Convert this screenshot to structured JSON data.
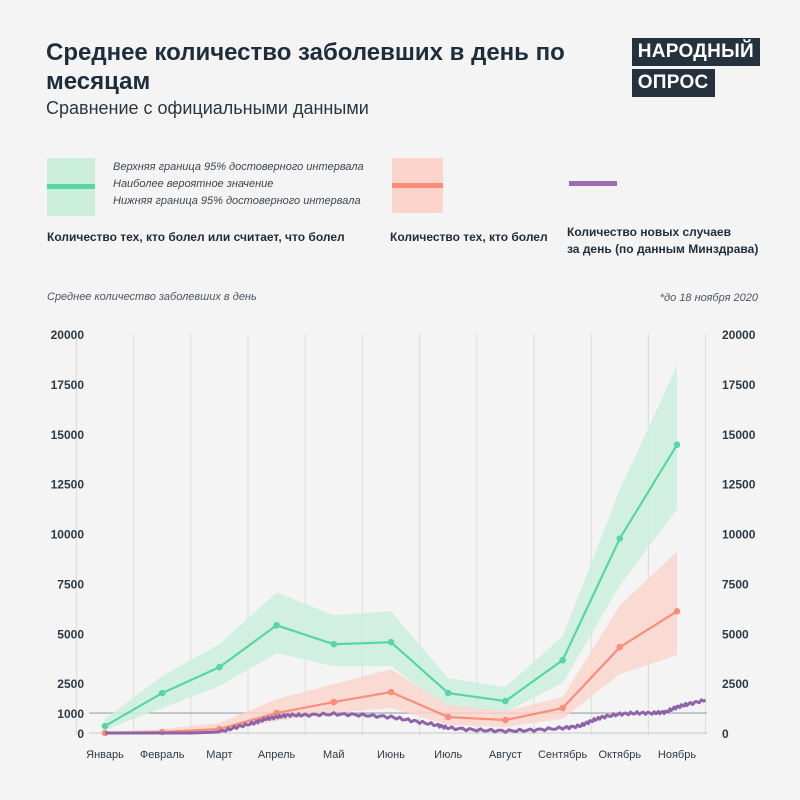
{
  "header": {
    "title": "Среднее количество заболевших в день по месяцам",
    "subtitle": "Сравнение с официальными данными",
    "brand_line1": "НАРОДНЫЙ",
    "brand_line2": "ОПРОС"
  },
  "legend": {
    "upper_bound": "Верхняя граница 95% достоверного интервала",
    "most_likely": "Наиболее вероятное значение",
    "lower_bound": "Нижняя граница 95% достоверного интервала",
    "sick_or_think": "Количество тех, кто болел или считает, что болел",
    "sick": "Количество тех, кто болел",
    "official_line1": "Количество новых случаев",
    "official_line2": "за день (по данным Минздрава)"
  },
  "notes": {
    "axis_caption": "Среднее количество заболевших в день",
    "date_note": "*до 18 ноября 2020"
  },
  "colors": {
    "green": "#56d6a5",
    "green_band": "#cbeedd",
    "red": "#fa8d7b",
    "red_band": "#fbd5cc",
    "purple": "#8e64a8"
  },
  "chart_data": {
    "type": "line",
    "title": "Среднее количество заболевших в день по месяцам",
    "ylabel": "Среднее количество заболевших в день",
    "ylim": [
      0,
      20000
    ],
    "yticks": [
      0,
      2500,
      5000,
      7500,
      10000,
      12500,
      15000,
      17500,
      20000
    ],
    "reference_line": 1000,
    "reference_label": "1000",
    "categories": [
      "Январь",
      "Февраль",
      "Март",
      "Апрель",
      "Май",
      "Июнь",
      "Июль",
      "Август",
      "Сентябрь",
      "Октябрь",
      "Ноябрь"
    ],
    "series": [
      {
        "name": "Количество тех, кто болел или считает, что болел",
        "values": [
          350,
          2000,
          3300,
          5400,
          4450,
          4550,
          2000,
          1600,
          3650,
          9750,
          14450
        ],
        "upper": [
          700,
          2850,
          4450,
          7050,
          5900,
          6100,
          2750,
          2300,
          4850,
          12200,
          18400
        ],
        "lower": [
          150,
          1250,
          2350,
          4000,
          3350,
          3350,
          1250,
          1050,
          2500,
          7400,
          11200
        ]
      },
      {
        "name": "Количество тех, кто болел",
        "values": [
          0,
          50,
          200,
          1000,
          1550,
          2050,
          800,
          650,
          1250,
          4300,
          6100
        ],
        "upper": [
          50,
          200,
          500,
          1700,
          2450,
          3200,
          1400,
          1100,
          1800,
          6400,
          9100
        ],
        "lower": [
          0,
          0,
          50,
          600,
          1000,
          1250,
          400,
          300,
          700,
          2950,
          3900
        ]
      },
      {
        "name": "Количество новых случаев за день (по данным Минздрава)",
        "x": [
          0,
          1,
          1.5,
          2,
          2.3,
          2.6,
          2.8,
          3,
          3.2,
          3.5,
          4,
          4.5,
          5,
          5.4,
          5.8,
          6,
          6.5,
          7,
          7.5,
          8,
          8.3,
          8.5,
          8.7,
          9,
          9.3,
          9.6,
          9.8,
          10,
          10.2,
          10.5
        ],
        "values": [
          0,
          0,
          0,
          50,
          300,
          500,
          700,
          800,
          900,
          900,
          950,
          900,
          800,
          600,
          400,
          250,
          150,
          100,
          150,
          250,
          350,
          600,
          800,
          950,
          1000,
          1000,
          1050,
          1300,
          1450,
          1650
        ]
      }
    ]
  }
}
